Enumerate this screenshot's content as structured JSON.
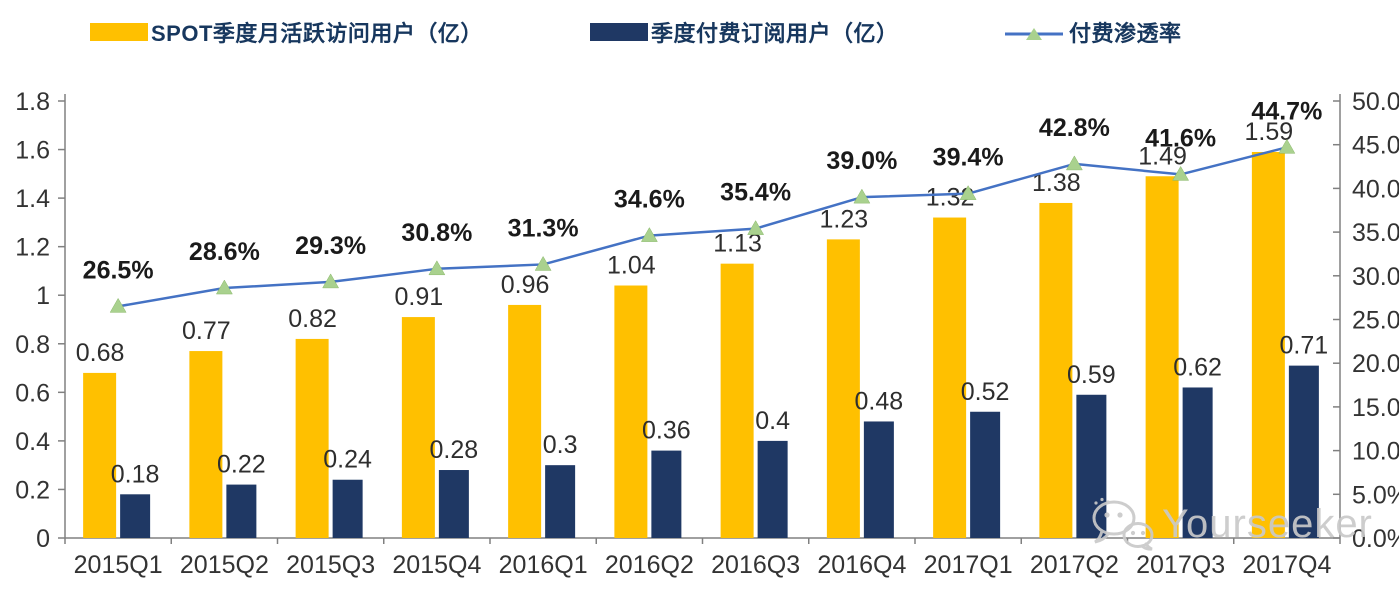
{
  "legend": {
    "items": [
      {
        "label": "SPOT季度月活跃访问用户（亿）",
        "swatch": "bar",
        "color": "#FFC000"
      },
      {
        "label": "季度付费订阅用户（亿）",
        "swatch": "bar",
        "color": "#1F3864"
      },
      {
        "label": "付费渗透率",
        "swatch": "line-triangle-marker",
        "color": "#4472C4",
        "marker_color": "#A9D18E"
      }
    ]
  },
  "colors": {
    "mau_bar": "#FFC000",
    "subs_bar": "#1F3864",
    "penetration_line": "#4472C4",
    "penetration_marker": "#A9D18E",
    "axis": "#808080",
    "axis_text": "#333333",
    "value_label": "#2e2e2e",
    "pct_label": "#1a1a1a",
    "legend_text": "#17375E",
    "watermark": "#c9c9c9"
  },
  "watermark": {
    "text": "Yourseeker",
    "icon": "wechat-logo"
  },
  "chart_data": {
    "type": "combo: grouped bar + line",
    "title": "",
    "categories": [
      "2015Q1",
      "2015Q2",
      "2015Q3",
      "2015Q4",
      "2016Q1",
      "2016Q2",
      "2016Q3",
      "2016Q4",
      "2017Q1",
      "2017Q2",
      "2017Q3",
      "2017Q4"
    ],
    "series": [
      {
        "name": "SPOT季度月活跃访问用户（亿）",
        "type": "bar",
        "axis": "left",
        "color": "#FFC000",
        "values": [
          0.68,
          0.77,
          0.82,
          0.91,
          0.96,
          1.04,
          1.13,
          1.23,
          1.32,
          1.38,
          1.49,
          1.59
        ],
        "labels": [
          "0.68",
          "0.77",
          "0.82",
          "0.91",
          "0.96",
          "1.04",
          "1.13",
          "1.23",
          "1.32",
          "1.38",
          "1.49",
          "1.59"
        ]
      },
      {
        "name": "季度付费订阅用户（亿）",
        "type": "bar",
        "axis": "left",
        "color": "#1F3864",
        "values": [
          0.18,
          0.22,
          0.24,
          0.28,
          0.3,
          0.36,
          0.4,
          0.48,
          0.52,
          0.59,
          0.62,
          0.71
        ],
        "labels": [
          "0.18",
          "0.22",
          "0.24",
          "0.28",
          "0.3",
          "0.36",
          "0.4",
          "0.48",
          "0.52",
          "0.59",
          "0.62",
          "0.71"
        ]
      },
      {
        "name": "付费渗透率",
        "type": "line",
        "axis": "right",
        "color": "#4472C4",
        "marker": "triangle",
        "marker_color": "#A9D18E",
        "values": [
          26.5,
          28.6,
          29.3,
          30.8,
          31.3,
          34.6,
          35.4,
          39.0,
          39.4,
          42.8,
          41.6,
          44.7
        ],
        "labels": [
          "26.5%",
          "28.6%",
          "29.3%",
          "30.8%",
          "31.3%",
          "34.6%",
          "35.4%",
          "39.0%",
          "39.4%",
          "42.8%",
          "41.6%",
          "44.7%"
        ]
      }
    ],
    "left_axis": {
      "min": 0,
      "max": 1.8,
      "ticks": [
        "1.8",
        "1.6",
        "1.4",
        "1.2",
        "1",
        "0.8",
        "0.6",
        "0.4",
        "0.2",
        "0"
      ]
    },
    "right_axis": {
      "min": 0,
      "max": 50,
      "ticks": [
        "50.0%",
        "45.0%",
        "40.0%",
        "35.0%",
        "30.0%",
        "25.0%",
        "20.0%",
        "15.0%",
        "10.0%",
        "5.0%",
        "0.0%"
      ]
    },
    "grid": false,
    "legend_position": "top"
  }
}
